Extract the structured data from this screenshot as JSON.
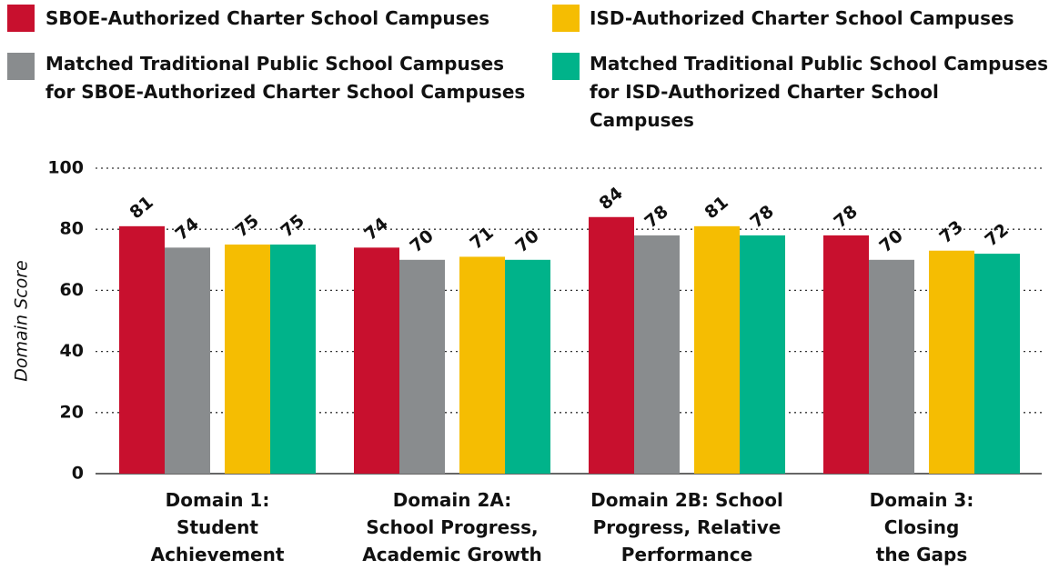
{
  "chart_data": {
    "type": "bar",
    "y_label": "Domain Score",
    "categories": [
      "Domain 1:\nStudent\nAchievement",
      "Domain 2A:\nSchool Progress,\nAcademic Growth",
      "Domain 2B: School\nProgress, Relative\nPerformance",
      "Domain 3:\nClosing\nthe Gaps"
    ],
    "series": [
      {
        "name": "SBOE-Authorized Charter School Campuses",
        "color": "#c8102e",
        "values": [
          81,
          74,
          84,
          78
        ]
      },
      {
        "name": "Matched Traditional Public School Campuses\nfor SBOE-Authorized Charter School Campuses",
        "color": "#898c8e",
        "values": [
          74,
          70,
          78,
          70
        ]
      },
      {
        "name": "ISD-Authorized Charter School Campuses",
        "color": "#f5bd02",
        "values": [
          75,
          71,
          81,
          73
        ]
      },
      {
        "name": "Matched Traditional Public School Campuses\nfor ISD-Authorized Charter School Campuses",
        "color": "#00b38a",
        "values": [
          75,
          70,
          78,
          72
        ]
      }
    ],
    "ylim": [
      0,
      100
    ],
    "yticks": [
      0,
      20,
      40,
      60,
      80,
      100
    ],
    "grid": true
  }
}
